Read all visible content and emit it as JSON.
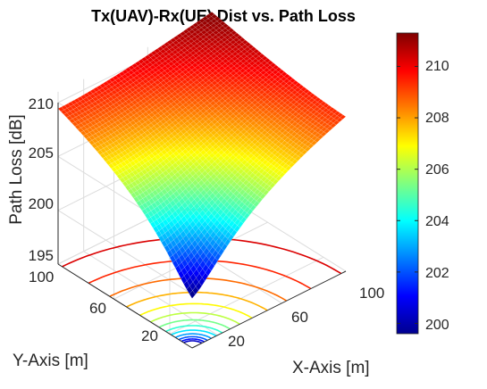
{
  "chart_data": {
    "type": "surface",
    "title": "Tx(UAV)-Rx(UE) Dist vs. Path Loss",
    "xlabel": "X-Axis [m]",
    "ylabel": "Y-Axis [m]",
    "zlabel": "Path Loss [dB]",
    "xlim": [
      0,
      120
    ],
    "ylim": [
      0,
      120
    ],
    "zlim": [
      195,
      211
    ],
    "x_ticks": [
      "20",
      "60",
      "100"
    ],
    "y_ticks": [
      "20",
      "60",
      "100"
    ],
    "z_ticks": [
      "195",
      "200",
      "205",
      "210"
    ],
    "colormap": "jet",
    "colorbar": {
      "range": [
        199.6,
        211.3
      ],
      "ticks": [
        "200",
        "202",
        "204",
        "206",
        "208",
        "210"
      ]
    },
    "surface": {
      "description_points": [
        {
          "x": 0,
          "y": 0,
          "z": 199.6
        },
        {
          "x": 120,
          "y": 0,
          "z": 207.5
        },
        {
          "x": 0,
          "y": 120,
          "z": 208.6
        },
        {
          "x": 120,
          "y": 120,
          "z": 211.3
        }
      ]
    },
    "contours_on_floor": true,
    "grid": true
  }
}
